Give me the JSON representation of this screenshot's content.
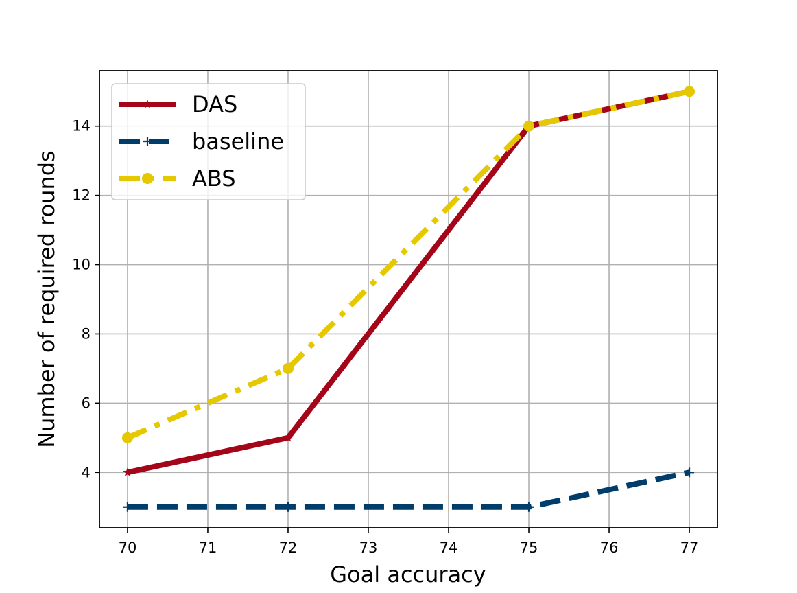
{
  "chart_data": {
    "type": "line",
    "title": "",
    "xlabel": "Goal accuracy",
    "ylabel": "Number of required rounds",
    "x": [
      70,
      72,
      75,
      77
    ],
    "xticks": [
      70,
      71,
      72,
      73,
      74,
      75,
      76,
      77
    ],
    "yticks": [
      4,
      6,
      8,
      10,
      12,
      14
    ],
    "xlim": [
      69.65,
      77.35
    ],
    "ylim": [
      2.4,
      15.6
    ],
    "grid": true,
    "legend_position": "upper-left",
    "series": [
      {
        "name": "DAS",
        "values": [
          4,
          5,
          14,
          15
        ],
        "color": "#a50519",
        "line_style": "solid",
        "marker": "star"
      },
      {
        "name": "baseline",
        "values": [
          3,
          3,
          3,
          4
        ],
        "color": "#003d6b",
        "line_style": "dashed",
        "marker": "plus"
      },
      {
        "name": "ABS",
        "values": [
          5,
          7,
          14,
          15
        ],
        "color": "#e6c800",
        "line_style": "dashdot",
        "marker": "circle"
      }
    ]
  }
}
